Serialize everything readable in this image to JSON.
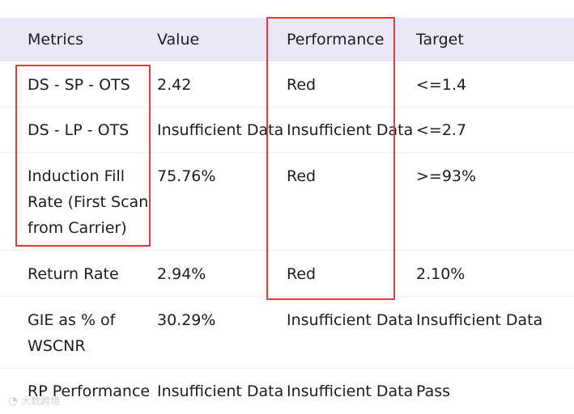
{
  "table": {
    "headers": [
      "Metrics",
      "Value",
      "Performance",
      "Target"
    ],
    "rows": [
      {
        "metric": "DS - SP - OTS",
        "value": "2.42",
        "performance": "Red",
        "target": "<=1.4"
      },
      {
        "metric": "DS - LP - OTS",
        "value": "Insufficient Data",
        "performance": "Insufficient Data",
        "target": "<=2.7"
      },
      {
        "metric": "Induction Fill Rate (First Scan from Carrier)",
        "value": "75.76%",
        "performance": "Red",
        "target": ">=93%"
      },
      {
        "metric": "Return Rate",
        "value": "2.94%",
        "performance": "Red",
        "target": "2.10%"
      },
      {
        "metric": "GIE as % of WSCNR",
        "value": "30.29%",
        "performance": "Insufficient Data",
        "target": "Insufficient Data"
      },
      {
        "metric": "RP Performance",
        "value": "Insufficient Data",
        "performance": "Insufficient Data",
        "target": "Pass"
      }
    ]
  },
  "highlight_color": "#e23b3b",
  "watermark": {
    "icon": "weibo-logo-icon",
    "text": "大数跨境"
  }
}
